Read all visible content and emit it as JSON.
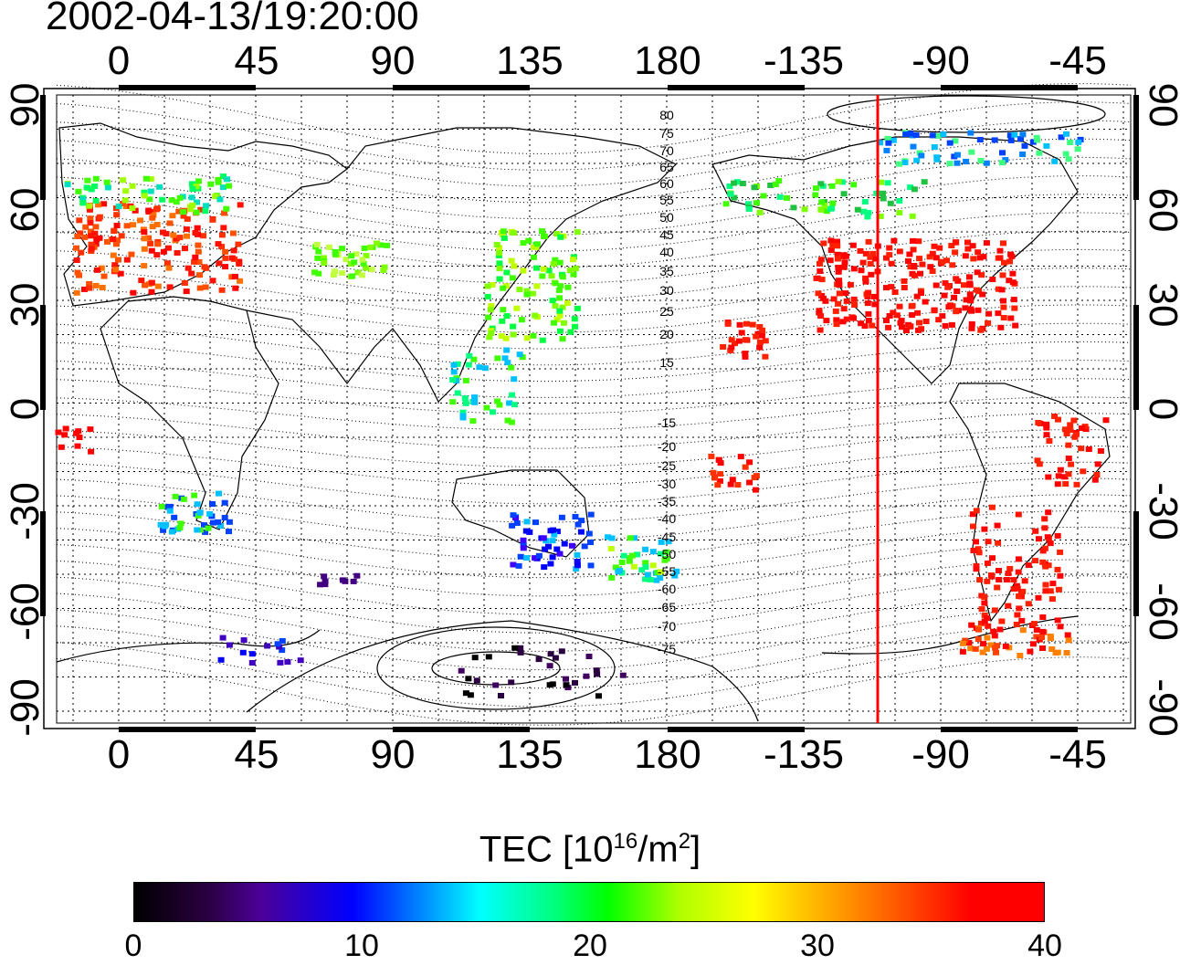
{
  "title": "2002-04-13/19:20:00",
  "lon_ticks": [
    "0",
    "45",
    "90",
    "135",
    "180",
    "-135",
    "-90",
    "-45"
  ],
  "lat_ticks": [
    "90",
    "60",
    "30",
    "0",
    "-30",
    "-60",
    "-90"
  ],
  "mag_lat_north": [
    "80",
    "75",
    "70",
    "65",
    "60",
    "55",
    "50",
    "45",
    "40",
    "35",
    "30",
    "25",
    "20",
    "15"
  ],
  "mag_lat_south": [
    "-15",
    "-20",
    "-25",
    "-30",
    "-35",
    "-40",
    "-45",
    "-50",
    "-55",
    "-60",
    "-65",
    "-70",
    "-75"
  ],
  "colorbar": {
    "title_prefix": "TEC  [10",
    "title_exp": "16",
    "title_unit": "/m",
    "title_unit_exp": "2",
    "title_suffix": "]",
    "labels": [
      "0",
      "10",
      "20",
      "30",
      "40"
    ],
    "min": 0,
    "max": 40
  },
  "terminator_longitude": -110,
  "colors": {
    "terminator": "#ff0000",
    "high_tec": "#ff0000",
    "mid_tec": "#00ff00",
    "low_tec": "#0000ff"
  }
}
